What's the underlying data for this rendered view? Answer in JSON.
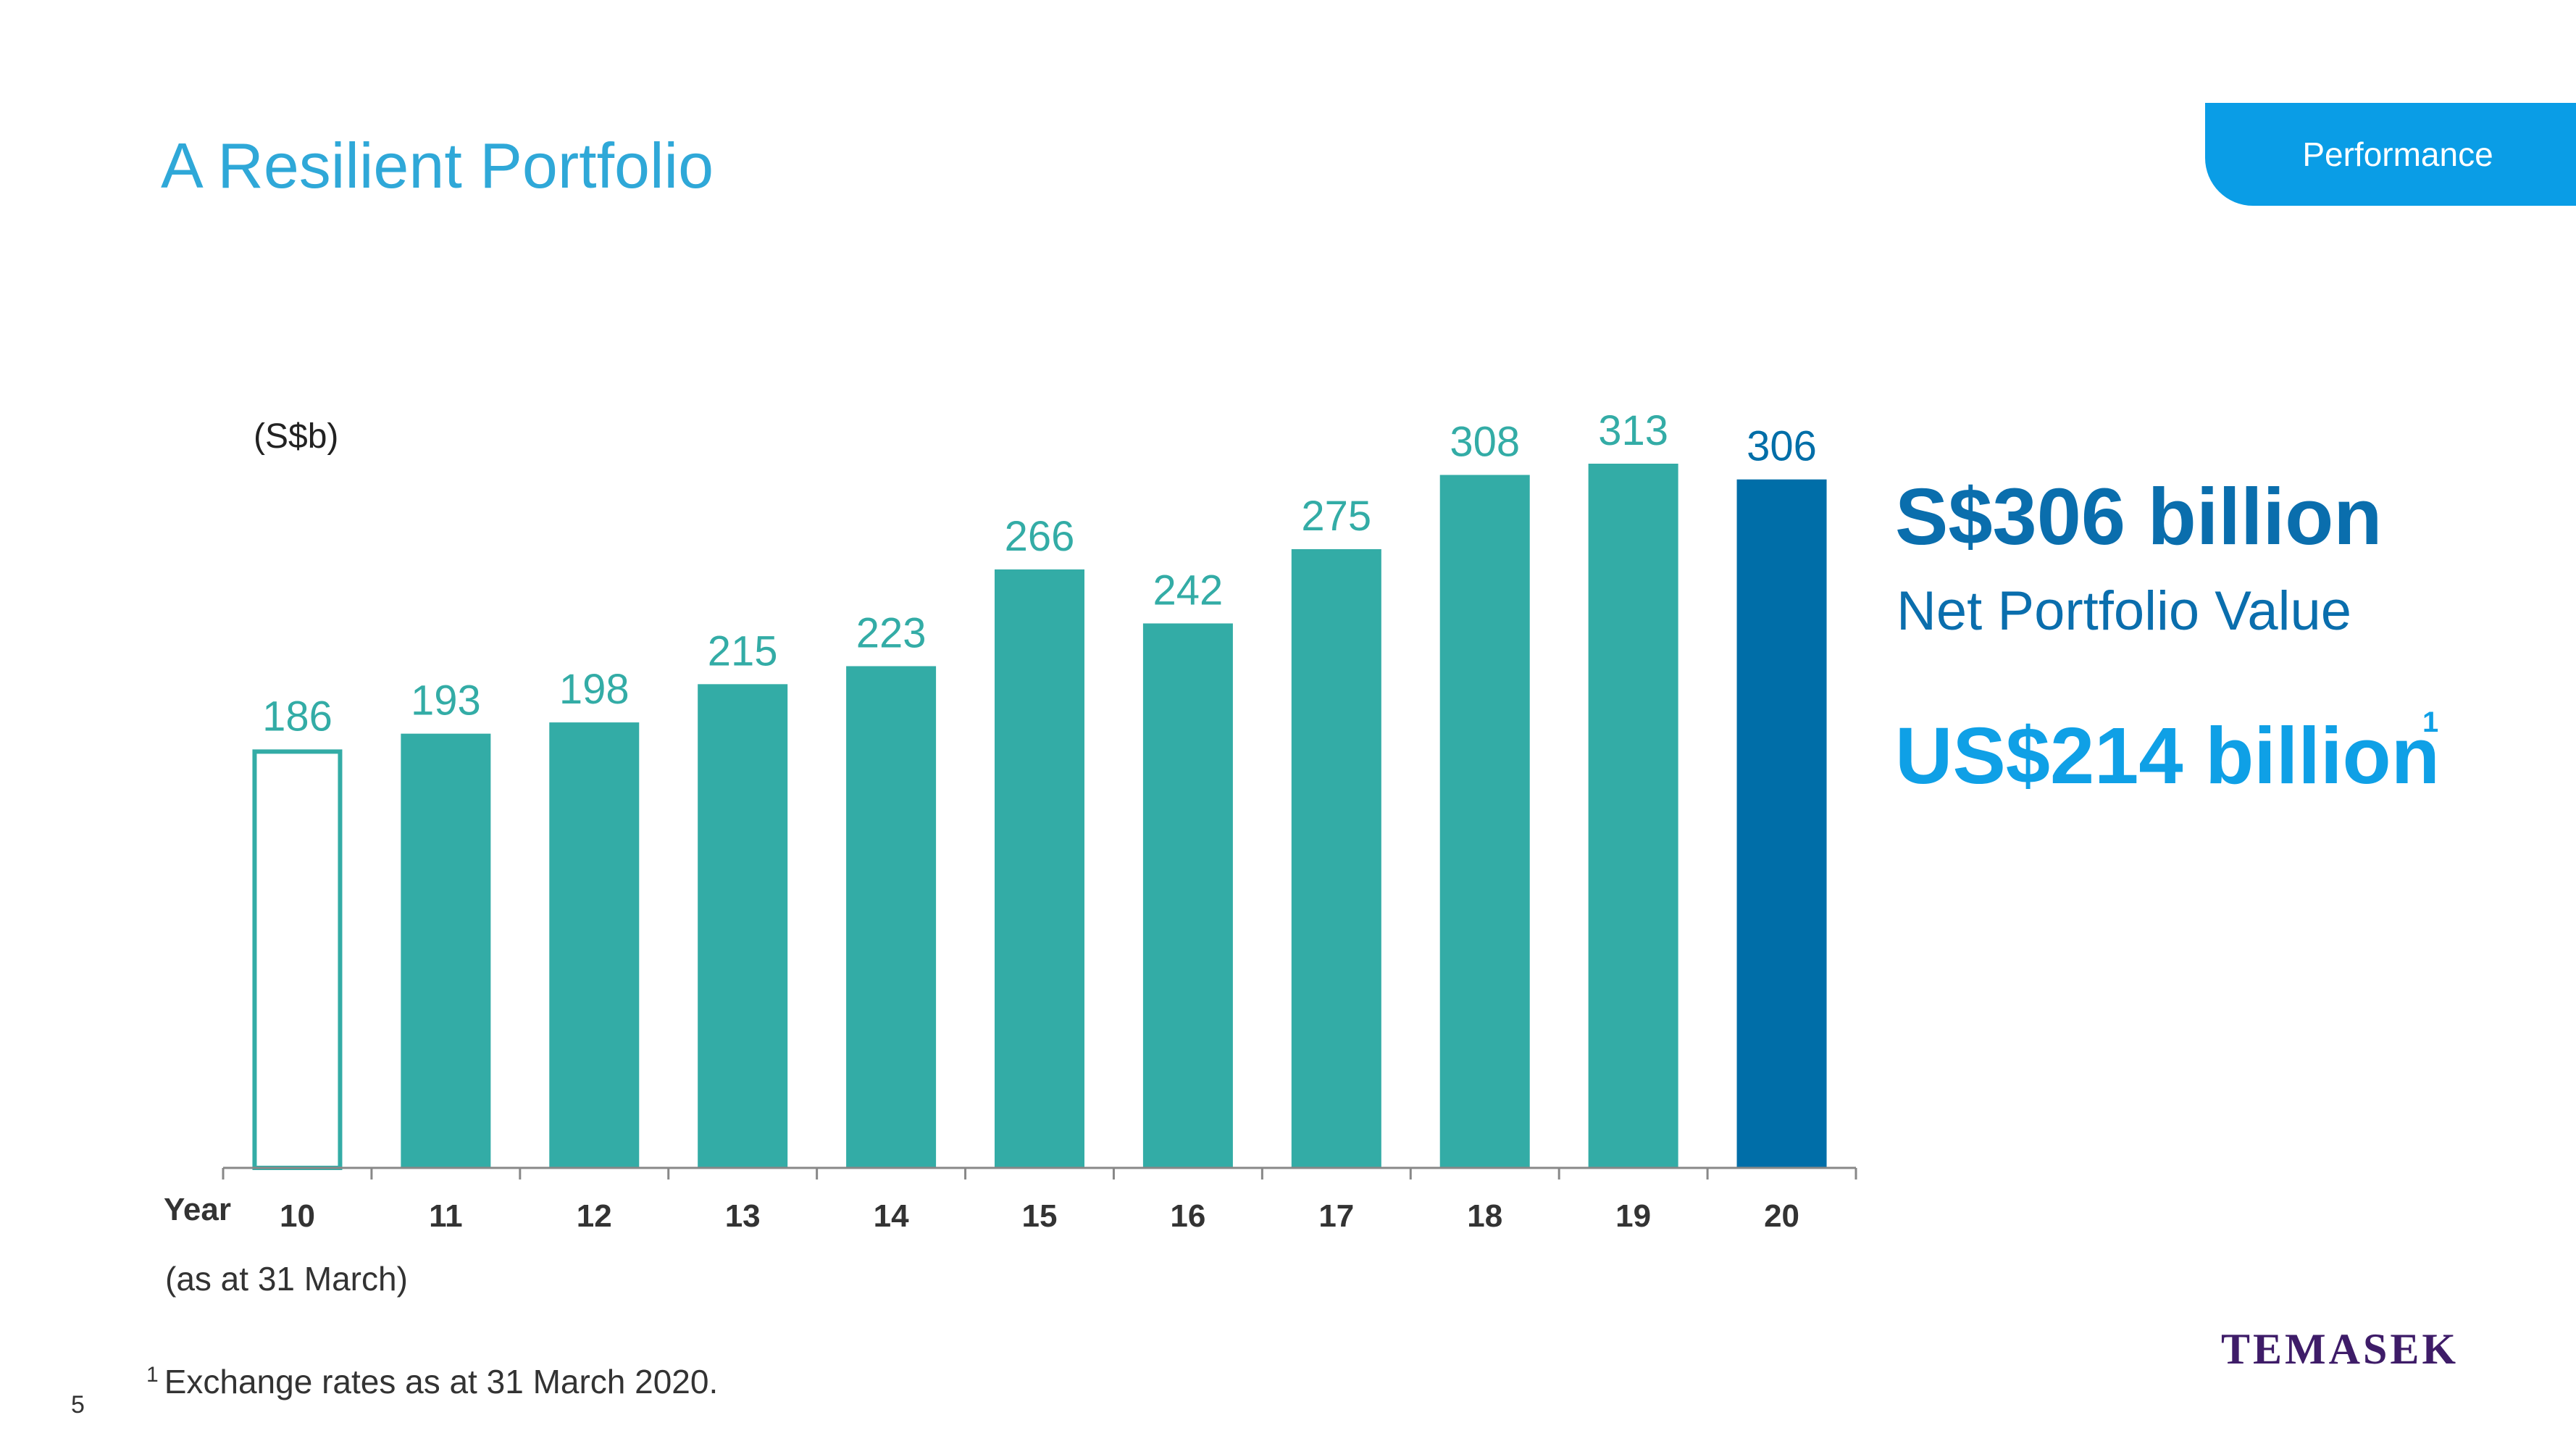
{
  "header": {
    "title": "A Resilient Portfolio",
    "section_tab": "Performance"
  },
  "chart_data": {
    "type": "bar",
    "unit_label": "(S$b)",
    "xlabel": "Year",
    "x_note": "(as at 31 March)",
    "categories": [
      "10",
      "11",
      "12",
      "13",
      "14",
      "15",
      "16",
      "17",
      "18",
      "19",
      "20"
    ],
    "values": [
      186,
      193,
      198,
      215,
      223,
      266,
      242,
      275,
      308,
      313,
      306
    ],
    "data_labels": [
      "186",
      "193",
      "198",
      "215",
      "223",
      "266",
      "242",
      "275",
      "308",
      "313",
      "306"
    ],
    "ylim": [
      0,
      313
    ],
    "grid": false,
    "bar_styles": [
      "outline",
      "filled",
      "filled",
      "filled",
      "filled",
      "filled",
      "filled",
      "filled",
      "filled",
      "filled",
      "highlight"
    ],
    "colors": {
      "bar": "#33aca6",
      "highlight": "#006ea8",
      "outline": "#33aca6",
      "axis": "#888888",
      "category_label": "#333333"
    }
  },
  "highlights": {
    "sgd_value": "S$306 billion",
    "sgd_caption": "Net Portfolio Value",
    "usd_value": "US$214 billion",
    "usd_footnote_marker": "1"
  },
  "footnote": {
    "marker": "1",
    "text": "Exchange rates as at 31 March 2020."
  },
  "page_number": "5",
  "logo_text": "TEMASEK"
}
